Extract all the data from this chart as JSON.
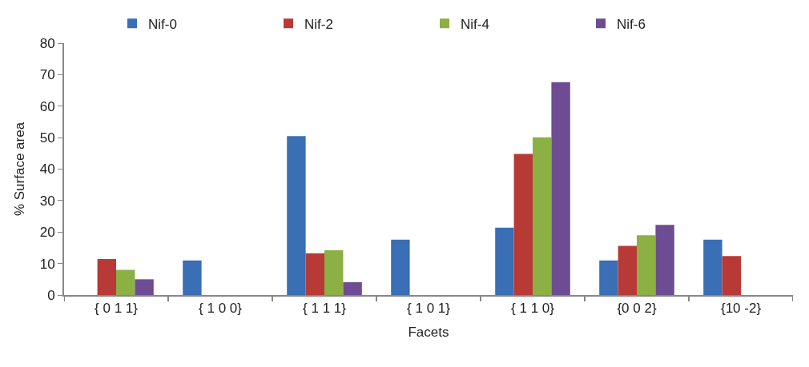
{
  "chart_data": {
    "type": "bar",
    "xlabel": "Facets",
    "ylabel": "% Surface area",
    "categories": [
      "{ 0 1 1}",
      "{ 1 0 0}",
      "{ 1 1 1}",
      "{ 1 0 1}",
      "{ 1 1 0}",
      "{0 0 2}",
      "{10 -2}"
    ],
    "series": [
      {
        "name": "Nif-0",
        "color": "#3a6eb5",
        "values": [
          null,
          11.0,
          50.5,
          17.6,
          21.4,
          11.0,
          17.6
        ]
      },
      {
        "name": "Nif-2",
        "color": "#b83a37",
        "values": [
          11.4,
          null,
          13.3,
          null,
          44.8,
          15.6,
          12.4
        ]
      },
      {
        "name": "Nif-4",
        "color": "#8cb043",
        "values": [
          8.0,
          null,
          14.2,
          null,
          50.1,
          19.0,
          null
        ]
      },
      {
        "name": "Nif-6",
        "color": "#6d4c94",
        "values": [
          5.0,
          null,
          4.1,
          null,
          67.6,
          22.3,
          null
        ]
      }
    ],
    "ylim": [
      0,
      80
    ],
    "yticks": [
      0,
      10,
      20,
      30,
      40,
      50,
      60,
      70,
      80
    ],
    "grid": false,
    "legend": "top"
  }
}
